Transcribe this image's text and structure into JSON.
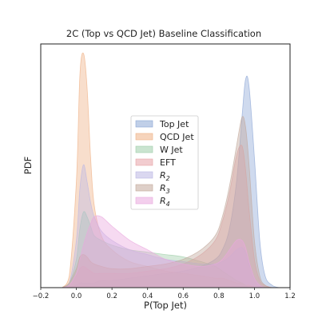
{
  "chart_data": {
    "type": "area",
    "title": "2C (Top vs QCD Jet) Baseline Classification",
    "xlabel": "P(Top Jet)",
    "ylabel": "PDF",
    "xlim": [
      -0.2,
      1.2
    ],
    "ylim": [
      0,
      1
    ],
    "x_ticks": [
      "−0.2",
      "0.0",
      "0.2",
      "0.4",
      "0.6",
      "0.8",
      "1.0",
      "1.2"
    ],
    "y_ticks_shown": false,
    "grid": false,
    "legend_position": "center",
    "x": [
      -0.08,
      -0.04,
      0.0,
      0.02,
      0.04,
      0.06,
      0.08,
      0.1,
      0.14,
      0.2,
      0.3,
      0.4,
      0.5,
      0.6,
      0.7,
      0.78,
      0.82,
      0.86,
      0.9,
      0.93,
      0.95,
      0.97,
      1.0,
      1.03,
      1.06,
      1.1,
      1.14
    ],
    "series": [
      {
        "name": "Top Jet",
        "color": "#8da7d6",
        "values": [
          0.0,
          0.0,
          0.01,
          0.02,
          0.02,
          0.02,
          0.02,
          0.02,
          0.03,
          0.03,
          0.04,
          0.05,
          0.06,
          0.07,
          0.09,
          0.12,
          0.16,
          0.25,
          0.45,
          0.72,
          0.88,
          0.85,
          0.55,
          0.2,
          0.05,
          0.01,
          0.0
        ]
      },
      {
        "name": "QCD Jet",
        "color": "#efb185",
        "values": [
          0.0,
          0.05,
          0.45,
          0.9,
          0.99,
          0.85,
          0.55,
          0.35,
          0.22,
          0.16,
          0.11,
          0.09,
          0.07,
          0.06,
          0.05,
          0.04,
          0.04,
          0.03,
          0.02,
          0.02,
          0.01,
          0.01,
          0.0,
          0.0,
          0.0,
          0.0,
          0.0
        ]
      },
      {
        "name": "W Jet",
        "color": "#9fceaa",
        "values": [
          0.0,
          0.02,
          0.12,
          0.25,
          0.32,
          0.3,
          0.26,
          0.22,
          0.2,
          0.18,
          0.16,
          0.15,
          0.14,
          0.13,
          0.11,
          0.09,
          0.07,
          0.05,
          0.03,
          0.02,
          0.01,
          0.0,
          0.0,
          0.0,
          0.0,
          0.0,
          0.0
        ]
      },
      {
        "name": "EFT",
        "color": "#e7a3a7",
        "values": [
          0.0,
          0.01,
          0.05,
          0.08,
          0.09,
          0.08,
          0.07,
          0.06,
          0.06,
          0.06,
          0.06,
          0.07,
          0.08,
          0.1,
          0.14,
          0.2,
          0.28,
          0.4,
          0.56,
          0.6,
          0.5,
          0.33,
          0.12,
          0.03,
          0.01,
          0.0,
          0.0
        ]
      },
      {
        "name": "R_2",
        "color": "#bcb7e4",
        "values": [
          0.0,
          0.02,
          0.2,
          0.42,
          0.52,
          0.45,
          0.36,
          0.3,
          0.24,
          0.2,
          0.16,
          0.14,
          0.12,
          0.11,
          0.1,
          0.1,
          0.11,
          0.13,
          0.16,
          0.17,
          0.15,
          0.1,
          0.04,
          0.01,
          0.0,
          0.0,
          0.0
        ]
      },
      {
        "name": "R_3",
        "color": "#c2a89b",
        "values": [
          0.0,
          0.02,
          0.08,
          0.13,
          0.14,
          0.13,
          0.11,
          0.1,
          0.09,
          0.08,
          0.08,
          0.09,
          0.1,
          0.12,
          0.16,
          0.22,
          0.3,
          0.43,
          0.6,
          0.72,
          0.68,
          0.52,
          0.2,
          0.05,
          0.01,
          0.0,
          0.0
        ]
      },
      {
        "name": "R_4",
        "color": "#eaa8de",
        "values": [
          0.0,
          0.01,
          0.06,
          0.12,
          0.18,
          0.23,
          0.27,
          0.3,
          0.3,
          0.26,
          0.2,
          0.16,
          0.12,
          0.1,
          0.09,
          0.1,
          0.12,
          0.16,
          0.2,
          0.2,
          0.17,
          0.11,
          0.04,
          0.01,
          0.0,
          0.0,
          0.0
        ]
      }
    ]
  },
  "legend": {
    "items": [
      {
        "main": "Top Jet",
        "sub": "",
        "italic": false
      },
      {
        "main": "QCD Jet",
        "sub": "",
        "italic": false
      },
      {
        "main": "W Jet",
        "sub": "",
        "italic": false
      },
      {
        "main": "EFT",
        "sub": "",
        "italic": false
      },
      {
        "main": "R",
        "sub": "2",
        "italic": true
      },
      {
        "main": "R",
        "sub": "3",
        "italic": true
      },
      {
        "main": "R",
        "sub": "4",
        "italic": true
      }
    ]
  }
}
